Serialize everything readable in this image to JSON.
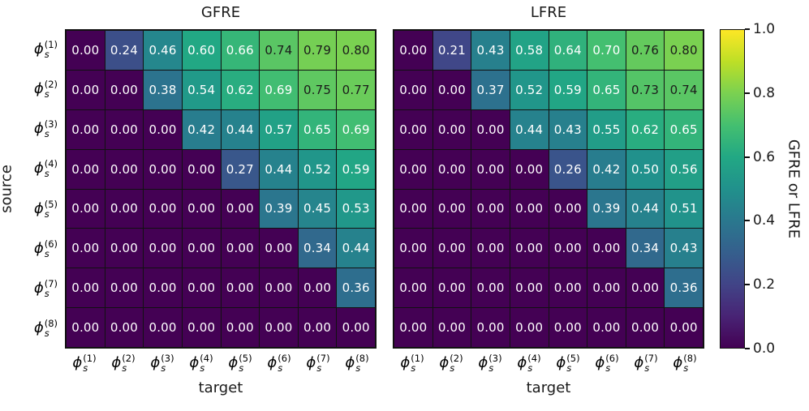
{
  "figure": {
    "ylabel": "source",
    "xlabel": "target",
    "colorbar": {
      "label": "GFRE or LFRE",
      "tick_labels": [
        "1.0",
        "0.8",
        "0.6",
        "0.4",
        "0.2",
        "0.0"
      ],
      "tick_values": [
        1.0,
        0.8,
        0.6,
        0.4,
        0.2,
        0.0
      ],
      "colormap": "viridis",
      "vmin": 0.0,
      "vmax": 1.0
    },
    "colors": {
      "text_on_dark_cell": "#ffffff",
      "text_on_light_cell": "#1b1b1b",
      "gridline": "#111111"
    }
  },
  "chart_data": [
    {
      "type": "heatmap",
      "title": "GFRE",
      "xlabel": "target",
      "ylabel": "source",
      "colormap": "viridis",
      "vmin": 0.0,
      "vmax": 1.0,
      "row_labels": [
        "ϕ_s^(1)",
        "ϕ_s^(2)",
        "ϕ_s^(3)",
        "ϕ_s^(4)",
        "ϕ_s^(5)",
        "ϕ_s^(6)",
        "ϕ_s^(7)",
        "ϕ_s^(8)"
      ],
      "col_labels": [
        "ϕ_s^(1)",
        "ϕ_s^(2)",
        "ϕ_s^(3)",
        "ϕ_s^(4)",
        "ϕ_s^(5)",
        "ϕ_s^(6)",
        "ϕ_s^(7)",
        "ϕ_s^(8)"
      ],
      "values": [
        [
          0.0,
          0.24,
          0.46,
          0.6,
          0.66,
          0.74,
          0.79,
          0.8
        ],
        [
          0.0,
          0.0,
          0.38,
          0.54,
          0.62,
          0.69,
          0.75,
          0.77
        ],
        [
          0.0,
          0.0,
          0.0,
          0.42,
          0.44,
          0.57,
          0.65,
          0.69
        ],
        [
          0.0,
          0.0,
          0.0,
          0.0,
          0.27,
          0.44,
          0.52,
          0.59
        ],
        [
          0.0,
          0.0,
          0.0,
          0.0,
          0.0,
          0.39,
          0.45,
          0.53
        ],
        [
          0.0,
          0.0,
          0.0,
          0.0,
          0.0,
          0.0,
          0.34,
          0.44
        ],
        [
          0.0,
          0.0,
          0.0,
          0.0,
          0.0,
          0.0,
          0.0,
          0.36
        ],
        [
          0.0,
          0.0,
          0.0,
          0.0,
          0.0,
          0.0,
          0.0,
          0.0
        ]
      ]
    },
    {
      "type": "heatmap",
      "title": "LFRE",
      "xlabel": "target",
      "ylabel": "source",
      "colormap": "viridis",
      "vmin": 0.0,
      "vmax": 1.0,
      "row_labels": [
        "ϕ_s^(1)",
        "ϕ_s^(2)",
        "ϕ_s^(3)",
        "ϕ_s^(4)",
        "ϕ_s^(5)",
        "ϕ_s^(6)",
        "ϕ_s^(7)",
        "ϕ_s^(8)"
      ],
      "col_labels": [
        "ϕ_s^(1)",
        "ϕ_s^(2)",
        "ϕ_s^(3)",
        "ϕ_s^(4)",
        "ϕ_s^(5)",
        "ϕ_s^(6)",
        "ϕ_s^(7)",
        "ϕ_s^(8)"
      ],
      "values": [
        [
          0.0,
          0.21,
          0.43,
          0.58,
          0.64,
          0.7,
          0.76,
          0.8
        ],
        [
          0.0,
          0.0,
          0.37,
          0.52,
          0.59,
          0.65,
          0.73,
          0.74
        ],
        [
          0.0,
          0.0,
          0.0,
          0.44,
          0.43,
          0.55,
          0.62,
          0.65
        ],
        [
          0.0,
          0.0,
          0.0,
          0.0,
          0.26,
          0.42,
          0.5,
          0.56
        ],
        [
          0.0,
          0.0,
          0.0,
          0.0,
          0.0,
          0.39,
          0.44,
          0.51
        ],
        [
          0.0,
          0.0,
          0.0,
          0.0,
          0.0,
          0.0,
          0.34,
          0.43
        ],
        [
          0.0,
          0.0,
          0.0,
          0.0,
          0.0,
          0.0,
          0.0,
          0.36
        ],
        [
          0.0,
          0.0,
          0.0,
          0.0,
          0.0,
          0.0,
          0.0,
          0.0
        ]
      ]
    }
  ]
}
